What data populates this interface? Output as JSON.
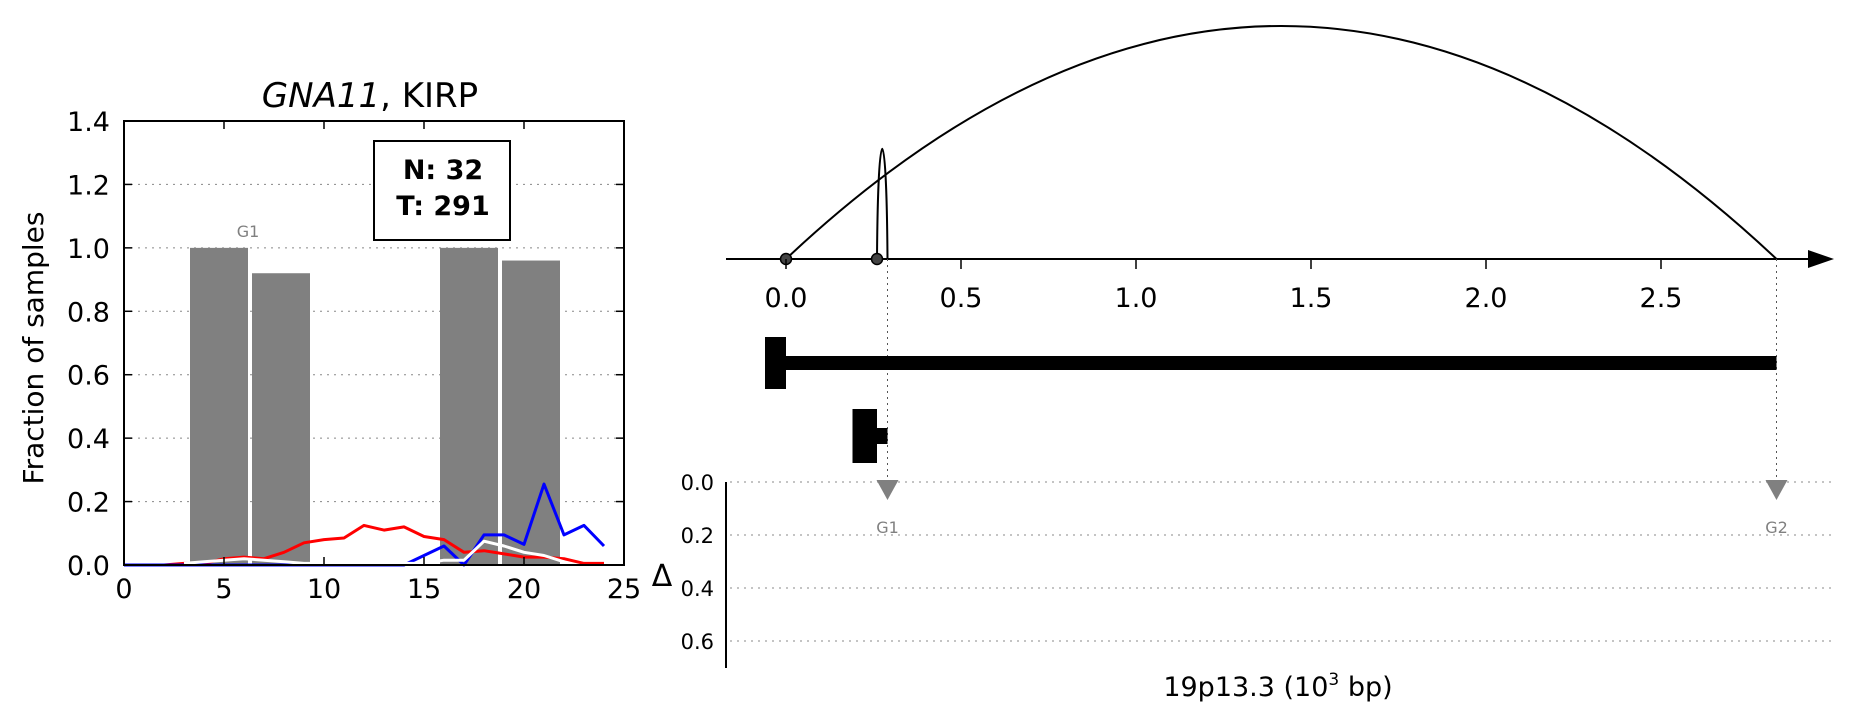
{
  "chart_data": [
    {
      "type": "bar",
      "title": {
        "gene": "GNA11",
        "rest": ", KIRP"
      },
      "ylabel": "Fraction of samples",
      "xlabel": "",
      "xlim": [
        0,
        25
      ],
      "ylim": [
        0,
        1.4
      ],
      "x_ticks": [
        "0",
        "5",
        "10",
        "15",
        "20",
        "25"
      ],
      "y_ticks": [
        "0.0",
        "0.2",
        "0.4",
        "0.6",
        "0.8",
        "1.0",
        "1.2",
        "1.4"
      ],
      "grid": "horizontal dotted",
      "legend_box": {
        "n_label": "N: 32",
        "t_label": "T: 291"
      },
      "bar_annotation": "G1",
      "bars": [
        {
          "x0": 3.3,
          "x1": 6.2,
          "value": 1.0
        },
        {
          "x0": 6.4,
          "x1": 9.3,
          "value": 0.92
        },
        {
          "x0": 15.8,
          "x1": 18.7,
          "value": 1.0
        },
        {
          "x0": 18.9,
          "x1": 21.8,
          "value": 0.96
        }
      ],
      "series": [
        {
          "color": "#ff0000",
          "x": [
            0,
            1,
            2,
            3,
            4,
            5,
            6,
            7,
            8,
            9,
            10,
            11,
            12,
            13,
            14,
            15,
            16,
            17,
            18,
            19,
            20,
            21,
            22,
            23,
            24
          ],
          "values": [
            0,
            0,
            0,
            0.005,
            0.005,
            0.02,
            0.025,
            0.02,
            0.04,
            0.07,
            0.08,
            0.085,
            0.125,
            0.11,
            0.12,
            0.09,
            0.08,
            0.04,
            0.045,
            0.035,
            0.025,
            0.025,
            0.02,
            0.005,
            0.005
          ]
        },
        {
          "color": "#0000ff",
          "x": [
            0,
            1,
            2,
            3,
            4,
            5,
            6,
            7,
            8,
            9,
            10,
            11,
            12,
            13,
            14,
            15,
            16,
            17,
            18,
            19,
            20,
            21,
            22,
            23,
            24
          ],
          "values": [
            0,
            0,
            0,
            0,
            0,
            0,
            0,
            0,
            0,
            0,
            0,
            0,
            0,
            0,
            0,
            0.03,
            0.06,
            0,
            0.095,
            0.095,
            0.065,
            0.255,
            0.095,
            0.125,
            0.06
          ]
        },
        {
          "color": "#ffffff",
          "x": [
            3,
            4,
            5,
            6,
            7,
            8,
            9,
            15,
            16,
            17,
            18,
            19,
            20,
            21,
            22
          ],
          "values": [
            0.005,
            0.01,
            0.015,
            0.02,
            0.015,
            0.01,
            0.005,
            0.005,
            0.015,
            0.015,
            0.075,
            0.06,
            0.04,
            0.03,
            0.01
          ]
        }
      ]
    },
    {
      "type": "arc-diagram",
      "xlabel_parts": {
        "before": "19p13.3 (10",
        "sup": "3",
        "after": " bp)"
      },
      "x_ticks": [
        "0.0",
        "0.5",
        "1.0",
        "1.5",
        "2.0",
        "2.5"
      ],
      "x_tick_values": [
        0,
        0.5,
        1.0,
        1.5,
        2.0,
        2.5
      ],
      "xlim": [
        -0.17,
        3.0
      ],
      "nodes": [
        0.0,
        0.26
      ],
      "arcs": [
        {
          "from": 0.0,
          "to": 2.83,
          "height": "tall"
        },
        {
          "from": 0.26,
          "to": 0.29,
          "height": "narrow"
        }
      ],
      "gene_track_1": {
        "start": 0.0,
        "end": 2.83,
        "thick_start": -0.06,
        "thick_end": 0.0
      },
      "gene_track_2": {
        "start": 0.19,
        "end": 0.29,
        "thick_start": 0.19,
        "thick_end": 0.26
      },
      "guide_lines": [
        0.29,
        2.83
      ],
      "delta_label": "Δ",
      "delta_ticks": [
        "0.0",
        "0.2",
        "0.4",
        "0.6"
      ],
      "delta_tick_values": [
        0,
        0.2,
        0.4,
        0.6
      ],
      "markers": [
        {
          "label": "G1",
          "pos": 0.29,
          "delta": 0.03
        },
        {
          "label": "G2",
          "pos": 2.83,
          "delta": 0.03
        }
      ],
      "colors": {
        "marker": "#808080",
        "axis": "#000000"
      }
    }
  ]
}
